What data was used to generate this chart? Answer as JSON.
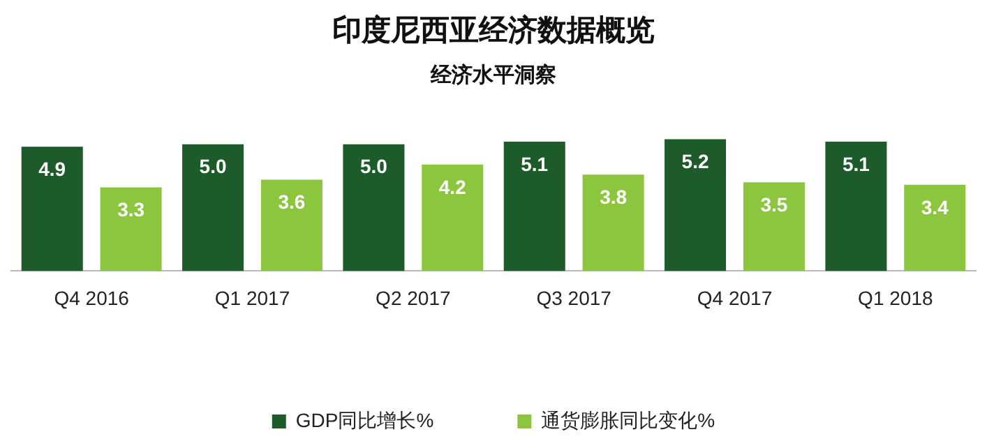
{
  "chart_data": {
    "type": "bar",
    "title": "印度尼西亚经济数据概览",
    "subtitle": "经济水平洞察",
    "categories": [
      "Q4 2016",
      "Q1 2017",
      "Q2 2017",
      "Q3 2017",
      "Q4 2017",
      "Q1 2018"
    ],
    "series": [
      {
        "name": "GDP同比增长%",
        "color": "#1e5b2b",
        "values": [
          4.9,
          5.0,
          5.0,
          5.1,
          5.2,
          5.1
        ],
        "value_labels": [
          "4.9",
          "5.0",
          "5.0",
          "5.1",
          "5.2",
          "5.1"
        ]
      },
      {
        "name": "通货膨胀同比变化%",
        "color": "#8cc63e",
        "values": [
          3.3,
          3.6,
          4.2,
          3.8,
          3.5,
          3.4
        ],
        "value_labels": [
          "3.3",
          "3.6",
          "4.2",
          "3.8",
          "3.5",
          "3.4"
        ]
      }
    ],
    "legend": "bottom",
    "grid": false
  }
}
